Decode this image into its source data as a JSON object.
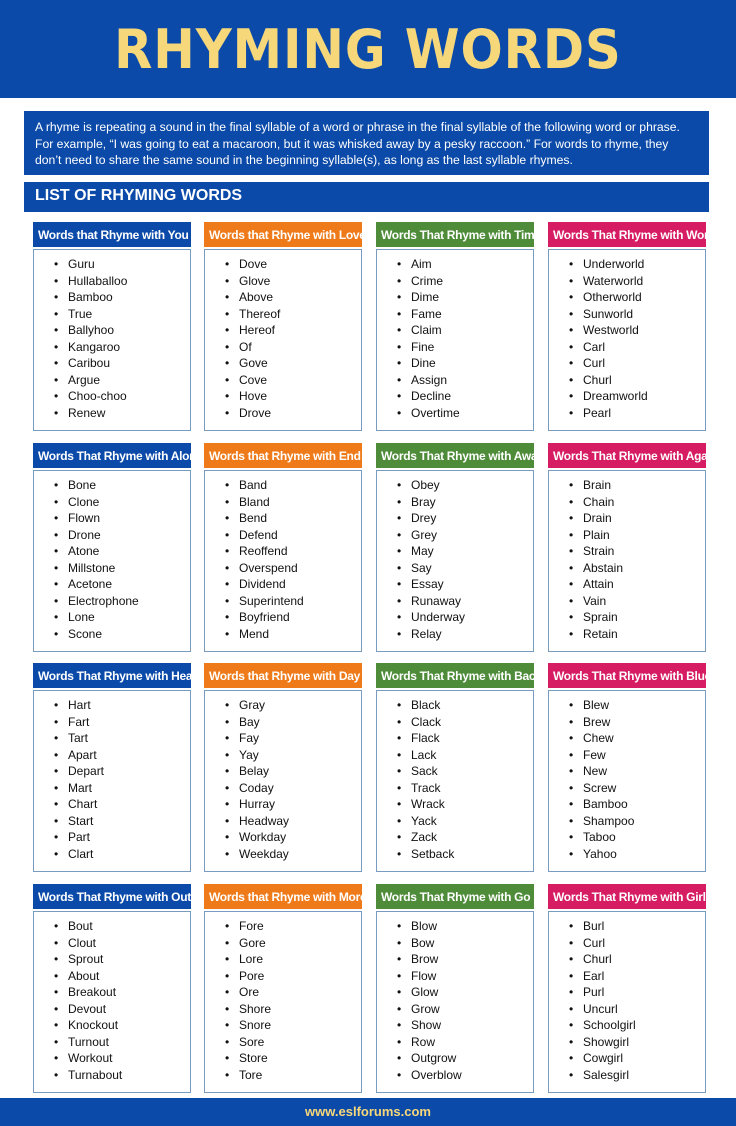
{
  "title": "RHYMING WORDS",
  "intro": "A rhyme is repeating a sound in the final syllable of a word or phrase in the final syllable of the following word or phrase. For example, “I was going to eat a macaroon, but it was whisked away by a pesky raccoon.” For words to rhyme, they don’t need to share the same sound in the beginning syllable(s), as long as the last syllable rhymes.",
  "list_heading": "LIST OF RHYMING WORDS",
  "colors": {
    "blue": "#0b4aa8",
    "orange": "#ee7a1a",
    "green": "#4e8c3a",
    "pink": "#d61c62",
    "title_yellow": "#f6d77a"
  },
  "cards": [
    {
      "title": "Words that Rhyme with You",
      "color": "blue",
      "words": [
        "Guru",
        "Hullaballoo",
        "Bamboo",
        "True",
        "Ballyhoo",
        "Kangaroo",
        "Caribou",
        "Argue",
        "Choo-choo",
        "Renew"
      ]
    },
    {
      "title": "Words that Rhyme with Love",
      "color": "orange",
      "words": [
        "Dove",
        "Glove",
        "Above",
        "Thereof",
        "Hereof",
        "Of",
        "Gove",
        "Cove",
        "Hove",
        "Drove"
      ]
    },
    {
      "title": "Words That Rhyme with Time",
      "color": "green",
      "words": [
        "Aim",
        "Crime",
        "Dime",
        "Fame",
        "Claim",
        "Fine",
        "Dine",
        "Assign",
        "Decline",
        "Overtime"
      ]
    },
    {
      "title": "Words That Rhyme with World",
      "color": "pink",
      "words": [
        "Underworld",
        "Waterworld",
        "Otherworld",
        "Sunworld",
        "Westworld",
        "Carl",
        "Curl",
        "Churl",
        "Dreamworld",
        "Pearl"
      ]
    },
    {
      "title": "Words That Rhyme with Alone",
      "color": "blue",
      "words": [
        "Bone",
        "Clone",
        "Flown",
        "Drone",
        "Atone",
        "Millstone",
        "Acetone",
        "Electrophone",
        "Lone",
        "Scone"
      ]
    },
    {
      "title": "Words that Rhyme with End",
      "color": "orange",
      "words": [
        "Band",
        "Bland",
        "Bend",
        "Defend",
        "Reoffend",
        "Overspend",
        "Dividend",
        "Superintend",
        "Boyfriend",
        "Mend"
      ]
    },
    {
      "title": "Words That Rhyme with Away",
      "color": "green",
      "words": [
        "Obey",
        "Bray",
        "Drey",
        "Grey",
        "May",
        "Say",
        "Essay",
        "Runaway",
        "Underway",
        "Relay"
      ]
    },
    {
      "title": "Words That Rhyme with Again",
      "color": "pink",
      "words": [
        "Brain",
        "Chain",
        "Drain",
        "Plain",
        "Strain",
        "Abstain",
        "Attain",
        "Vain",
        "Sprain",
        "Retain"
      ]
    },
    {
      "title": "Words That Rhyme with Heart",
      "color": "blue",
      "words": [
        "Hart",
        "Fart",
        "Tart",
        "Apart",
        "Depart",
        "Mart",
        "Chart",
        "Start",
        "Part",
        "Clart"
      ]
    },
    {
      "title": "Words that Rhyme with Day",
      "color": "orange",
      "words": [
        "Gray",
        "Bay",
        "Fay",
        "Yay",
        "Belay",
        "Coday",
        "Hurray",
        "Headway",
        "Workday",
        "Weekday"
      ]
    },
    {
      "title": "Words That Rhyme with Back",
      "color": "green",
      "words": [
        "Black",
        "Clack",
        "Flack",
        "Lack",
        "Sack",
        "Track",
        "Wrack",
        "Yack",
        "Zack",
        "Setback"
      ]
    },
    {
      "title": "Words That Rhyme with Blue",
      "color": "pink",
      "words": [
        "Blew",
        "Brew",
        "Chew",
        "Few",
        "New",
        "Screw",
        "Bamboo",
        "Shampoo",
        "Taboo",
        "Yahoo"
      ]
    },
    {
      "title": "Words That Rhyme with Out",
      "color": "blue",
      "words": [
        "Bout",
        "Clout",
        "Sprout",
        "About",
        "Breakout",
        "Devout",
        "Knockout",
        "Turnout",
        "Workout",
        "Turnabout"
      ]
    },
    {
      "title": "Words that Rhyme with More",
      "color": "orange",
      "words": [
        "Fore",
        "Gore",
        "Lore",
        "Pore",
        "Ore",
        "Shore",
        "Snore",
        "Sore",
        "Store",
        "Tore"
      ]
    },
    {
      "title": "Words That Rhyme with Go",
      "color": "green",
      "words": [
        "Blow",
        "Bow",
        "Brow",
        "Flow",
        "Glow",
        "Grow",
        "Show",
        "Row",
        "Outgrow",
        "Overblow"
      ]
    },
    {
      "title": "Words That Rhyme with Girl",
      "color": "pink",
      "words": [
        "Burl",
        "Curl",
        "Churl",
        "Earl",
        "Purl",
        "Uncurl",
        "Schoolgirl",
        "Showgirl",
        "Cowgirl",
        "Salesgirl"
      ]
    }
  ],
  "footer": "www.eslforums.com"
}
